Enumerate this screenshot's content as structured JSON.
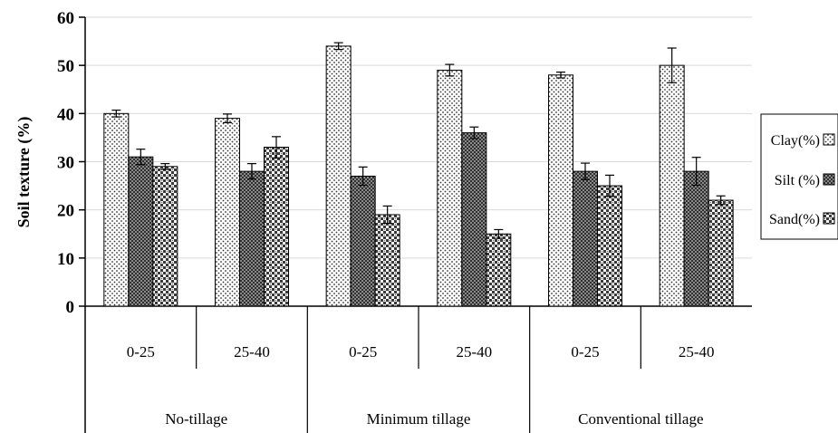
{
  "chart_data": {
    "type": "bar",
    "ylabel": "Soil texture (%)",
    "ylim": [
      0,
      60
    ],
    "yticks": [
      0,
      10,
      20,
      30,
      40,
      50,
      60
    ],
    "grid": true,
    "legend_position": "right",
    "groups": [
      {
        "label": "No-tillage",
        "subcategories": [
          "0-25",
          "25-40"
        ]
      },
      {
        "label": "Minimum tillage",
        "subcategories": [
          "0-25",
          "25-40"
        ]
      },
      {
        "label": "Conventional tillage",
        "subcategories": [
          "0-25",
          "25-40"
        ]
      }
    ],
    "categories": [
      "0-25",
      "25-40",
      "0-25",
      "25-40",
      "0-25",
      "25-40"
    ],
    "series": [
      {
        "name": "Clay(%)",
        "legend_label": "Clay(%)",
        "pattern": "dots",
        "values": [
          40,
          39,
          54,
          49,
          48,
          50
        ],
        "errors": [
          0.7,
          0.9,
          0.7,
          1.2,
          0.6,
          3.6
        ]
      },
      {
        "name": "Silt (%)",
        "legend_label": "Silt (%)",
        "pattern": "crosshatch",
        "values": [
          31,
          28,
          27,
          36,
          28,
          28
        ],
        "errors": [
          1.6,
          1.6,
          1.9,
          1.2,
          1.7,
          2.9
        ]
      },
      {
        "name": "Sand(%)",
        "legend_label": "Sand(%)",
        "pattern": "check",
        "values": [
          29,
          33,
          19,
          15,
          25,
          22
        ],
        "errors": [
          0.6,
          2.2,
          1.8,
          0.9,
          2.2,
          0.9
        ]
      }
    ]
  }
}
